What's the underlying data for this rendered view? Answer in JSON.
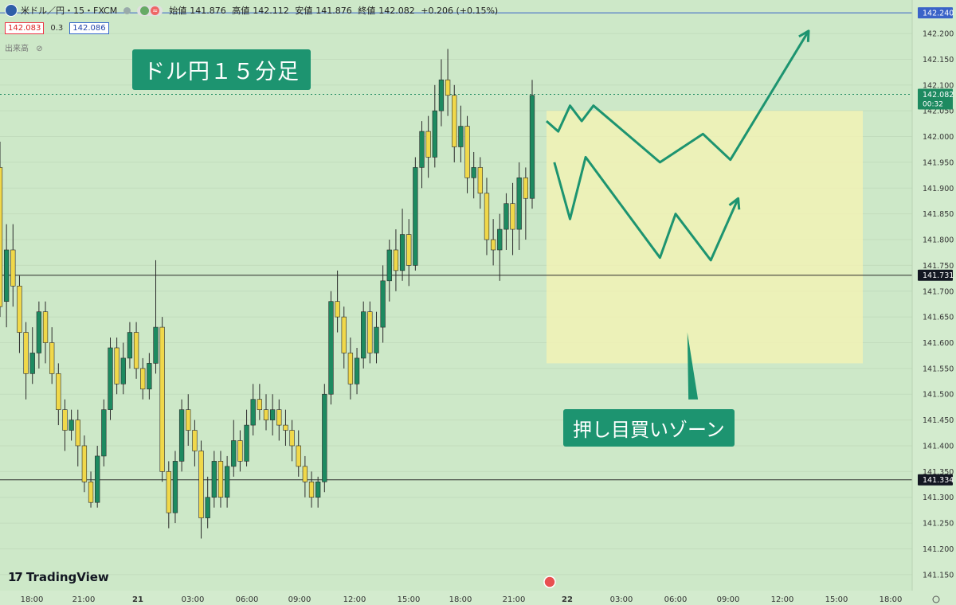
{
  "header": {
    "symbol": "米ドル／円・15・FXCM",
    "ohlc": {
      "open_label": "始値",
      "open": "141.876",
      "high_label": "高値",
      "high": "142.112",
      "low_label": "安値",
      "low": "141.876",
      "close_label": "終値",
      "close": "142.082",
      "change": "+0.206 (+0.15%)"
    },
    "bid": "142.083",
    "spread": "0.3",
    "ask": "142.086",
    "volume_label": "出来高"
  },
  "annotations": {
    "title": "ドル円１５分足",
    "zone": "押し目買いゾーン"
  },
  "brand": "TradingView",
  "colors": {
    "background": "#cde8c8",
    "bull": "#1d8a60",
    "bear": "#f0d84a",
    "annotation": "#1d9470",
    "zone": "#f4f3b4"
  },
  "chart_data": {
    "type": "candlestick",
    "ylim": [
      141.125,
      142.265
    ],
    "y_ticks": [
      "142.200",
      "142.150",
      "142.100",
      "142.050",
      "142.000",
      "141.950",
      "141.900",
      "141.850",
      "141.800",
      "141.750",
      "141.700",
      "141.650",
      "141.600",
      "141.550",
      "141.500",
      "141.450",
      "141.400",
      "141.350",
      "141.300",
      "141.250",
      "141.200",
      "141.150"
    ],
    "x_ticks": [
      "18:00",
      "21:00",
      "21",
      "03:00",
      "06:00",
      "09:00",
      "12:00",
      "15:00",
      "18:00",
      "21:00",
      "22",
      "03:00",
      "06:00",
      "09:00",
      "12:00",
      "15:00",
      "18:00"
    ],
    "price_labels": [
      {
        "value": 142.24,
        "text": "142.240",
        "style": "blue"
      },
      {
        "value": 142.082,
        "text": "142.082",
        "sub": "00:32",
        "style": "current"
      },
      {
        "value": 141.731,
        "text": "141.731",
        "style": "line"
      },
      {
        "value": 141.334,
        "text": "141.334",
        "style": "line"
      }
    ],
    "horizontal_lines": [
      142.24,
      141.731,
      141.334
    ],
    "zone": {
      "y_top": 142.05,
      "y_bottom": 141.56
    },
    "candles": [
      [
        141.94,
        141.67,
        141.99,
        141.65
      ],
      [
        141.68,
        141.78,
        141.83,
        141.63
      ],
      [
        141.78,
        141.71,
        141.83,
        141.67
      ],
      [
        141.71,
        141.62,
        141.73,
        141.58
      ],
      [
        141.62,
        141.54,
        141.64,
        141.49
      ],
      [
        141.54,
        141.58,
        141.63,
        141.52
      ],
      [
        141.58,
        141.66,
        141.68,
        141.55
      ],
      [
        141.66,
        141.6,
        141.68,
        141.56
      ],
      [
        141.6,
        141.54,
        141.63,
        141.52
      ],
      [
        141.54,
        141.47,
        141.56,
        141.44
      ],
      [
        141.47,
        141.43,
        141.49,
        141.39
      ],
      [
        141.43,
        141.45,
        141.47,
        141.41
      ],
      [
        141.45,
        141.4,
        141.47,
        141.36
      ],
      [
        141.4,
        141.33,
        141.42,
        141.31
      ],
      [
        141.33,
        141.29,
        141.35,
        141.28
      ],
      [
        141.29,
        141.38,
        141.4,
        141.28
      ],
      [
        141.38,
        141.47,
        141.49,
        141.36
      ],
      [
        141.47,
        141.59,
        141.61,
        141.45
      ],
      [
        141.59,
        141.52,
        141.61,
        141.5
      ],
      [
        141.52,
        141.57,
        141.6,
        141.5
      ],
      [
        141.57,
        141.62,
        141.64,
        141.55
      ],
      [
        141.62,
        141.55,
        141.64,
        141.53
      ],
      [
        141.55,
        141.51,
        141.57,
        141.49
      ],
      [
        141.51,
        141.56,
        141.58,
        141.49
      ],
      [
        141.56,
        141.63,
        141.76,
        141.54
      ],
      [
        141.63,
        141.35,
        141.65,
        141.33
      ],
      [
        141.35,
        141.27,
        141.37,
        141.24
      ],
      [
        141.27,
        141.37,
        141.39,
        141.25
      ],
      [
        141.37,
        141.47,
        141.49,
        141.35
      ],
      [
        141.47,
        141.43,
        141.5,
        141.4
      ],
      [
        141.43,
        141.39,
        141.45,
        141.36
      ],
      [
        141.39,
        141.26,
        141.41,
        141.22
      ],
      [
        141.26,
        141.3,
        141.34,
        141.24
      ],
      [
        141.3,
        141.37,
        141.39,
        141.28
      ],
      [
        141.37,
        141.3,
        141.39,
        141.28
      ],
      [
        141.3,
        141.36,
        141.38,
        141.28
      ],
      [
        141.36,
        141.41,
        141.45,
        141.34
      ],
      [
        141.41,
        141.37,
        141.43,
        141.35
      ],
      [
        141.37,
        141.44,
        141.47,
        141.36
      ],
      [
        141.44,
        141.49,
        141.52,
        141.42
      ],
      [
        141.49,
        141.47,
        141.52,
        141.45
      ],
      [
        141.47,
        141.45,
        141.5,
        141.43
      ],
      [
        141.45,
        141.47,
        141.5,
        141.42
      ],
      [
        141.47,
        141.44,
        141.49,
        141.41
      ],
      [
        141.44,
        141.43,
        141.47,
        141.4
      ],
      [
        141.43,
        141.4,
        141.45,
        141.37
      ],
      [
        141.4,
        141.36,
        141.43,
        141.34
      ],
      [
        141.36,
        141.33,
        141.38,
        141.3
      ],
      [
        141.33,
        141.3,
        141.35,
        141.28
      ],
      [
        141.3,
        141.33,
        141.34,
        141.28
      ],
      [
        141.33,
        141.5,
        141.52,
        141.31
      ],
      [
        141.5,
        141.68,
        141.7,
        141.48
      ],
      [
        141.68,
        141.65,
        141.74,
        141.62
      ],
      [
        141.65,
        141.58,
        141.67,
        141.55
      ],
      [
        141.58,
        141.52,
        141.61,
        141.49
      ],
      [
        141.52,
        141.57,
        141.59,
        141.5
      ],
      [
        141.57,
        141.66,
        141.68,
        141.55
      ],
      [
        141.66,
        141.58,
        141.68,
        141.56
      ],
      [
        141.58,
        141.63,
        141.66,
        141.56
      ],
      [
        141.63,
        141.72,
        141.75,
        141.6
      ],
      [
        141.72,
        141.78,
        141.8,
        141.68
      ],
      [
        141.78,
        141.74,
        141.82,
        141.7
      ],
      [
        141.74,
        141.81,
        141.86,
        141.72
      ],
      [
        141.81,
        141.75,
        141.84,
        141.71
      ],
      [
        141.75,
        141.94,
        141.96,
        141.74
      ],
      [
        141.94,
        142.01,
        142.03,
        141.9
      ],
      [
        142.01,
        141.96,
        142.04,
        141.92
      ],
      [
        141.96,
        142.05,
        142.1,
        141.94
      ],
      [
        142.05,
        142.11,
        142.15,
        142.02
      ],
      [
        142.11,
        142.08,
        142.17,
        142.04
      ],
      [
        142.08,
        141.98,
        142.1,
        141.95
      ],
      [
        141.98,
        142.02,
        142.06,
        141.95
      ],
      [
        142.02,
        141.92,
        142.04,
        141.89
      ],
      [
        141.92,
        141.94,
        141.97,
        141.88
      ],
      [
        141.94,
        141.89,
        141.96,
        141.86
      ],
      [
        141.89,
        141.8,
        141.92,
        141.77
      ],
      [
        141.8,
        141.78,
        141.84,
        141.75
      ],
      [
        141.78,
        141.82,
        141.85,
        141.72
      ],
      [
        141.82,
        141.87,
        141.89,
        141.78
      ],
      [
        141.87,
        141.82,
        141.91,
        141.77
      ],
      [
        141.82,
        141.92,
        141.95,
        141.78
      ],
      [
        141.92,
        141.88,
        141.94,
        141.8
      ],
      [
        141.88,
        142.08,
        142.11,
        141.86
      ]
    ],
    "projections": [
      [
        [
          141.93,
          142.03
        ],
        [
          141.96,
          142.01
        ],
        [
          141.99,
          142.06
        ],
        [
          142.02,
          142.03
        ],
        [
          142.05,
          142.06
        ],
        [
          142.22,
          141.95
        ],
        [
          142.33,
          142.005
        ],
        [
          142.4,
          141.955
        ],
        [
          142.6,
          142.205
        ]
      ],
      [
        [
          141.95,
          141.95
        ],
        [
          141.99,
          141.84
        ],
        [
          142.03,
          141.96
        ],
        [
          142.22,
          141.765
        ],
        [
          142.26,
          141.85
        ],
        [
          142.35,
          141.76
        ],
        [
          142.42,
          141.88
        ]
      ]
    ],
    "zone_pointer": {
      "x_start": 142.29,
      "y_start": 141.62,
      "x_end": 142.305,
      "y_end": 141.49
    }
  }
}
